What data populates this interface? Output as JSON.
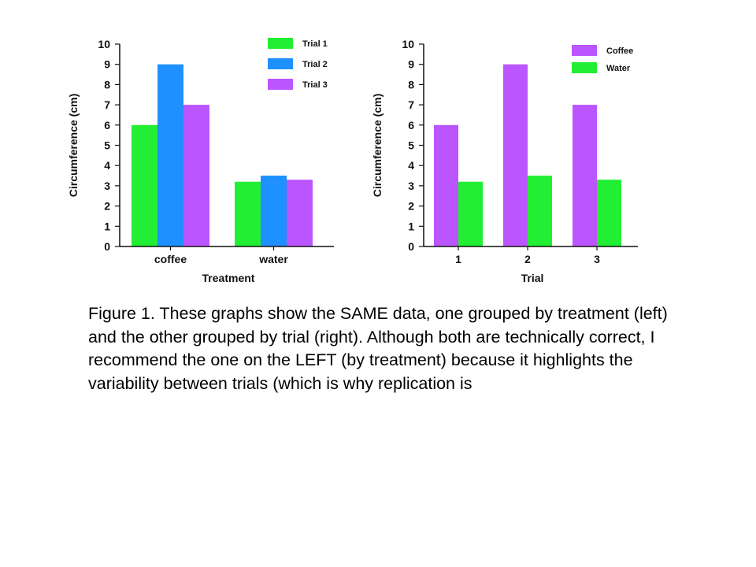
{
  "chart_data": [
    {
      "type": "bar",
      "categories": [
        "coffee",
        "water"
      ],
      "series": [
        {
          "name": "Trial 1",
          "color": "#22ee33",
          "values": [
            6,
            3.2
          ]
        },
        {
          "name": "Trial 2",
          "color": "#1e90ff",
          "values": [
            9,
            3.5
          ]
        },
        {
          "name": "Trial 3",
          "color": "#bb55ff",
          "values": [
            7,
            3.3
          ]
        }
      ],
      "xlabel": "Treatment",
      "ylabel": "Circumference (cm)",
      "ylim": [
        0,
        10
      ],
      "yticks": [
        0,
        1,
        2,
        3,
        4,
        5,
        6,
        7,
        8,
        9,
        10
      ],
      "grid": false,
      "legend": "top-right"
    },
    {
      "type": "bar",
      "categories": [
        "1",
        "2",
        "3"
      ],
      "series": [
        {
          "name": "Coffee",
          "color": "#bb55ff",
          "values": [
            6,
            9,
            7
          ]
        },
        {
          "name": "Water",
          "color": "#22ee33",
          "values": [
            3.2,
            3.5,
            3.3
          ]
        }
      ],
      "xlabel": "Trial",
      "ylabel": "Circumference (cm)",
      "ylim": [
        0,
        10
      ],
      "yticks": [
        0,
        1,
        2,
        3,
        4,
        5,
        6,
        7,
        8,
        9,
        10
      ],
      "grid": false,
      "legend": "top-right"
    }
  ],
  "caption": "Figure 1.  These graphs show the SAME data, one grouped by treatment (left) and the other grouped by trial (right).  Although both are technically correct, I recommend the one on the LEFT (by treatment) because it highlights the variability between trials (which is why replication is"
}
